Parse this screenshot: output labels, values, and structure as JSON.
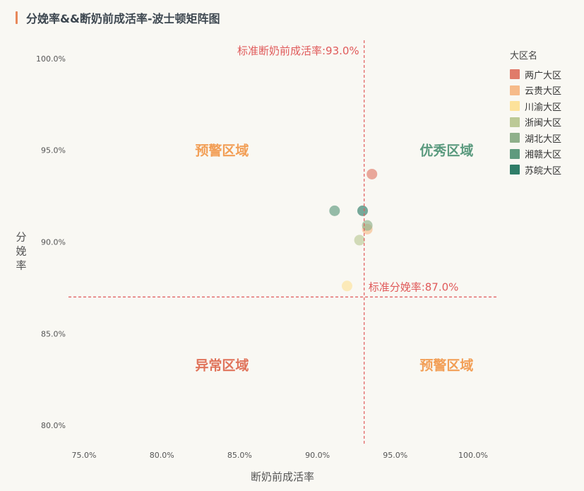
{
  "header": {
    "title": "分娩率&&断奶前成活率-波士顿矩阵图"
  },
  "chart_data": {
    "type": "scatter",
    "title": "分娩率&&断奶前成活率-波士顿矩阵图",
    "xlabel": "断奶前成活率",
    "ylabel": "分娩率",
    "xlim": [
      74,
      101.5
    ],
    "ylim": [
      79,
      101
    ],
    "x_ticks": [
      75,
      80,
      85,
      90,
      95,
      100
    ],
    "y_ticks": [
      80,
      85,
      90,
      95,
      100
    ],
    "x_tick_labels": [
      "75.0%",
      "80.0%",
      "85.0%",
      "90.0%",
      "95.0%",
      "100.0%"
    ],
    "y_tick_labels": [
      "80.0%",
      "85.0%",
      "90.0%",
      "95.0%",
      "100.0%"
    ],
    "grid": false,
    "legend_position": "right",
    "legend_title": "大区名",
    "series": [
      {
        "name": "两广大区",
        "color": "#e07b6a",
        "points": [
          [
            93.5,
            93.7
          ]
        ]
      },
      {
        "name": "云贵大区",
        "color": "#f6bb8a",
        "points": [
          [
            93.2,
            90.7
          ]
        ]
      },
      {
        "name": "川渝大区",
        "color": "#fde29a",
        "points": [
          [
            91.9,
            87.6
          ]
        ]
      },
      {
        "name": "浙闽大区",
        "color": "#bcc996",
        "points": [
          [
            92.7,
            90.1
          ]
        ]
      },
      {
        "name": "湖北大区",
        "color": "#8fb08b",
        "points": [
          [
            93.2,
            90.9
          ]
        ]
      },
      {
        "name": "湘赣大区",
        "color": "#5f9a7e",
        "points": [
          [
            91.1,
            91.7
          ]
        ]
      },
      {
        "name": "苏皖大区",
        "color": "#2f7d68",
        "points": [
          [
            92.9,
            91.7
          ]
        ]
      }
    ],
    "reference_lines": [
      {
        "axis": "x",
        "value": 93.0,
        "label": "标准断奶前成活率:93.0%",
        "color": "#e05a5a"
      },
      {
        "axis": "y",
        "value": 87.0,
        "label": "标准分娩率:87.0%",
        "color": "#e05a5a"
      }
    ],
    "quadrant_labels": [
      {
        "text": "预警区域",
        "color": "#f29e55"
      },
      {
        "text": "优秀区域",
        "color": "#5a9a7e"
      },
      {
        "text": "异常区域",
        "color": "#e0735a"
      },
      {
        "text": "预警区域",
        "color": "#f29e55"
      }
    ]
  }
}
